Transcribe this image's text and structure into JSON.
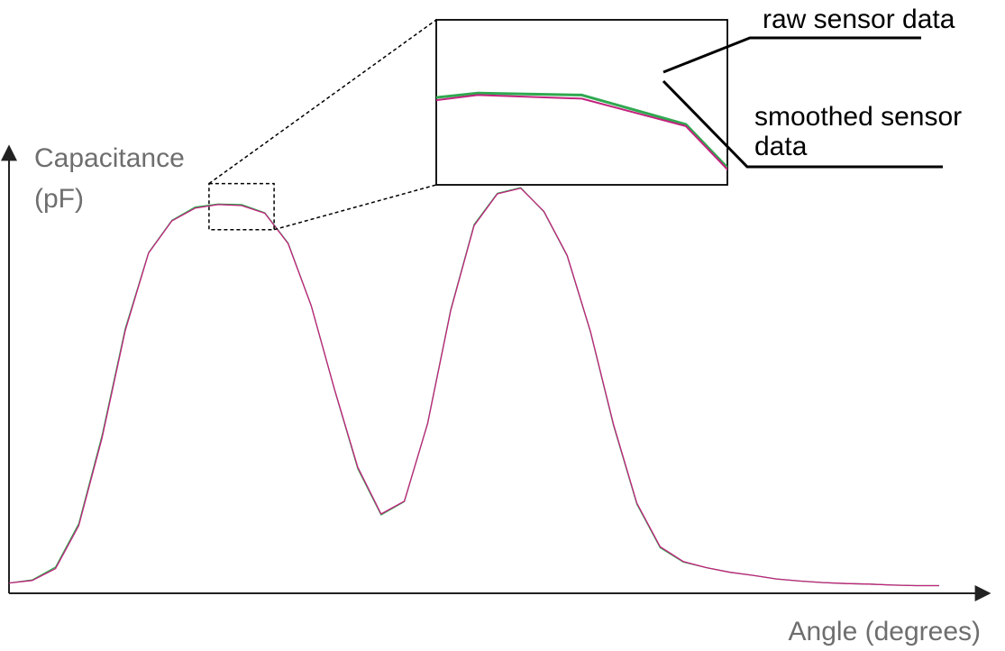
{
  "chart_data": {
    "type": "line",
    "xlabel": "Angle (degrees)",
    "ylabel_line1": "Capacitance",
    "ylabel_line2": "(pF)",
    "xlim": [
      0,
      100
    ],
    "ylim": [
      0,
      100
    ],
    "grid": false,
    "legend": "none",
    "inset_labels": {
      "raw": "raw sensor data",
      "smoothed_line1": "smoothed sensor",
      "smoothed_line2": "data"
    },
    "inset_window": {
      "x": [
        21.5,
        28.5
      ],
      "y": [
        71,
        80
      ]
    },
    "series": [
      {
        "key": "raw",
        "color": "#2fa84f",
        "x": [
          0,
          2.5,
          5.0,
          7.5,
          10.0,
          12.5,
          15.0,
          17.5,
          20.0,
          22.5,
          25.0,
          27.5,
          30.0,
          32.5,
          35.0,
          37.5,
          40.0,
          42.5,
          45.0,
          47.5,
          50.0,
          52.5,
          55.0,
          57.5,
          60.0,
          62.5,
          65.0,
          67.5,
          70.0,
          72.5,
          75.0,
          77.5,
          80.0,
          82.5,
          85.0,
          87.5,
          90.0,
          92.5,
          95.0,
          97.5,
          100.0
        ],
        "y": [
          2.0,
          2.6,
          5.1,
          13.6,
          30.8,
          51.7,
          66.5,
          72.8,
          75.4,
          76.0,
          75.9,
          74.3,
          68.4,
          56.1,
          39.7,
          24.3,
          15.3,
          17.9,
          33.2,
          55.5,
          72.0,
          78.1,
          79.2,
          74.5,
          65.9,
          51.1,
          32.7,
          17.4,
          8.9,
          6.1,
          5.0,
          4.1,
          3.5,
          2.8,
          2.4,
          2.1,
          1.9,
          1.8,
          1.6,
          1.5,
          1.5
        ]
      },
      {
        "key": "smoothed",
        "color": "#c2237e",
        "x": [
          0,
          2.5,
          5.0,
          7.5,
          10.0,
          12.5,
          15.0,
          17.5,
          20.0,
          22.5,
          25.0,
          27.5,
          30.0,
          32.5,
          35.0,
          37.5,
          40.0,
          42.5,
          45.0,
          47.5,
          50.0,
          52.5,
          55.0,
          57.5,
          60.0,
          62.5,
          65.0,
          67.5,
          70.0,
          72.5,
          75.0,
          77.5,
          80.0,
          82.5,
          85.0,
          87.5,
          90.0,
          92.5,
          95.0,
          97.5,
          100.0
        ],
        "y": [
          2.0,
          2.5,
          4.8,
          13.2,
          30.3,
          51.3,
          66.4,
          72.7,
          75.2,
          75.9,
          75.7,
          74.2,
          68.3,
          56.1,
          39.8,
          24.6,
          15.5,
          18.0,
          33.1,
          55.3,
          71.8,
          78.0,
          79.1,
          74.6,
          66.0,
          51.2,
          32.9,
          17.6,
          9.1,
          6.2,
          5.0,
          4.1,
          3.5,
          2.8,
          2.4,
          2.1,
          1.9,
          1.8,
          1.6,
          1.5,
          1.5
        ]
      }
    ]
  }
}
